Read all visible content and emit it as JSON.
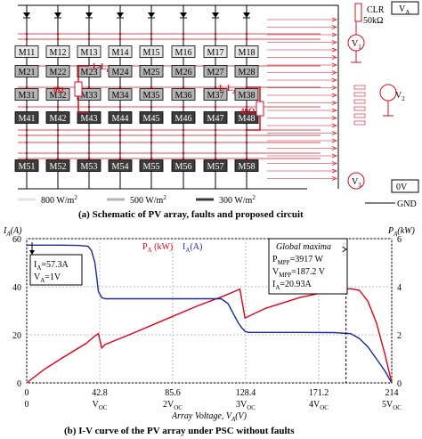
{
  "schematic": {
    "rows": [
      [
        "M11",
        "M12",
        "M13",
        "M14",
        "M15",
        "M16",
        "M17",
        "M18"
      ],
      [
        "M21",
        "M22",
        "M23",
        "M24",
        "M25",
        "M26",
        "M27",
        "M28"
      ],
      [
        "M31",
        "M32",
        "M33",
        "M34",
        "M35",
        "M36",
        "M37",
        "M38"
      ],
      [
        "M41",
        "M42",
        "M43",
        "M44",
        "M45",
        "M46",
        "M47",
        "M48"
      ],
      [
        "M51",
        "M52",
        "M53",
        "M54",
        "M55",
        "M56",
        "M57",
        "M58"
      ]
    ],
    "row_shades": [
      "#e6e6e6",
      "#b4b4b4",
      "#b4b4b4",
      "#3c3c3c",
      "#3c3c3c"
    ],
    "fault_ll1": "L-L",
    "fault_ll1_sub": "1",
    "fault_ll1_res": "0Ω",
    "fault_ll2": "L-L",
    "fault_ll2_sub": "2",
    "fault_ll2_res": "40Ω",
    "clr_label": "CLR",
    "clr_value": "50kΩ",
    "v1": "V",
    "v1_sub": "1",
    "v2": "V",
    "v2_sub": "2",
    "v3": "V",
    "v3_sub": "3",
    "va_box": "V",
    "va_box_sub": "A",
    "zero_box": "0V",
    "gnd": "GND",
    "legend": [
      {
        "label": "800 W/m",
        "sup": "2",
        "shade": "#e6e6e6"
      },
      {
        "label": "500 W/m",
        "sup": "2",
        "shade": "#b4b4b4"
      },
      {
        "label": "300 W/m",
        "sup": "2",
        "shade": "#3c3c3c"
      }
    ],
    "caption": "(a) Schematic of PV array, faults and proposed circuit"
  },
  "chart_data": {
    "type": "line",
    "y_left_label": "I",
    "y_left_label_sub": "A",
    "y_left_unit": "(A)",
    "y_right_label": "P",
    "y_right_label_sub": "A",
    "y_right_unit": "(kW)",
    "x_ticks": [
      "0",
      "42.8",
      "85.6",
      "128.4",
      "171.2",
      "214"
    ],
    "x_ticks_sub": [
      "0",
      "V",
      "2V",
      "3V",
      "4V",
      "5V"
    ],
    "x_ticks_sub_oc": [
      "",
      "OC",
      "OC",
      "OC",
      "OC",
      "OC"
    ],
    "xlabel": "Array Voltage, V",
    "xlabel_sub": "A",
    "xlabel_unit": "(V)",
    "y_left_ticks": [
      "60",
      "40",
      "20",
      "0"
    ],
    "y_right_ticks": [
      "6",
      "4",
      "2",
      "0"
    ],
    "xlim": [
      0,
      214
    ],
    "ylim_left": [
      0,
      60
    ],
    "ylim_right": [
      0,
      6
    ],
    "legend_p": "P",
    "legend_p_sub": "A",
    "legend_p_unit": "(kW)",
    "legend_i": "I",
    "legend_i_sub": "A",
    "legend_i_unit": "(A)",
    "series": [
      {
        "name": "P_A (kW)",
        "color": "#e0001a",
        "axis": "right",
        "x": [
          0,
          10,
          20,
          28,
          35,
          40,
          42,
          44,
          46,
          60,
          80,
          100,
          115,
          125,
          128,
          140,
          160,
          180,
          190,
          195,
          200,
          205,
          210,
          214
        ],
        "y": [
          0,
          0.55,
          1.0,
          1.35,
          1.65,
          1.95,
          2.05,
          1.45,
          1.6,
          2.0,
          2.6,
          3.2,
          3.6,
          3.9,
          2.7,
          3.1,
          3.55,
          3.85,
          3.917,
          3.85,
          3.4,
          2.5,
          1.2,
          0
        ]
      },
      {
        "name": "I_A (A)",
        "color": "#1a2a9a",
        "axis": "left",
        "x": [
          0,
          10,
          20,
          30,
          36,
          38,
          40,
          41,
          42,
          44,
          46,
          60,
          80,
          100,
          114,
          118,
          121,
          124,
          126,
          128,
          130,
          140,
          160,
          180,
          190,
          195,
          200,
          205,
          210,
          214
        ],
        "y": [
          57.3,
          57.3,
          57.3,
          57.2,
          56.8,
          55,
          50,
          44,
          38,
          35.5,
          35,
          35,
          35,
          35,
          35,
          33,
          29,
          25,
          23,
          21.5,
          21,
          21,
          21,
          20.93,
          20.5,
          18.5,
          15,
          10,
          5,
          0
        ]
      }
    ],
    "annotation_left": {
      "l1": "I",
      "l1_sub": "A",
      "l1_val": "=57.3A",
      "l2": "V",
      "l2_sub": "A",
      "l2_val": "=1V"
    },
    "annotation_right": {
      "title": "Global maxima",
      "l1": "P",
      "l1_sub": "MPP",
      "l1_val": "=3917 W",
      "l2": "V",
      "l2_sub": "MPP",
      "l2_val": "=187.2 V",
      "l3": "I",
      "l3_sub": "A",
      "l3_val": "=20.93A"
    },
    "gmpp_x": 187.2,
    "caption": "(b) I-V curve of the PV array under PSC without faults"
  }
}
